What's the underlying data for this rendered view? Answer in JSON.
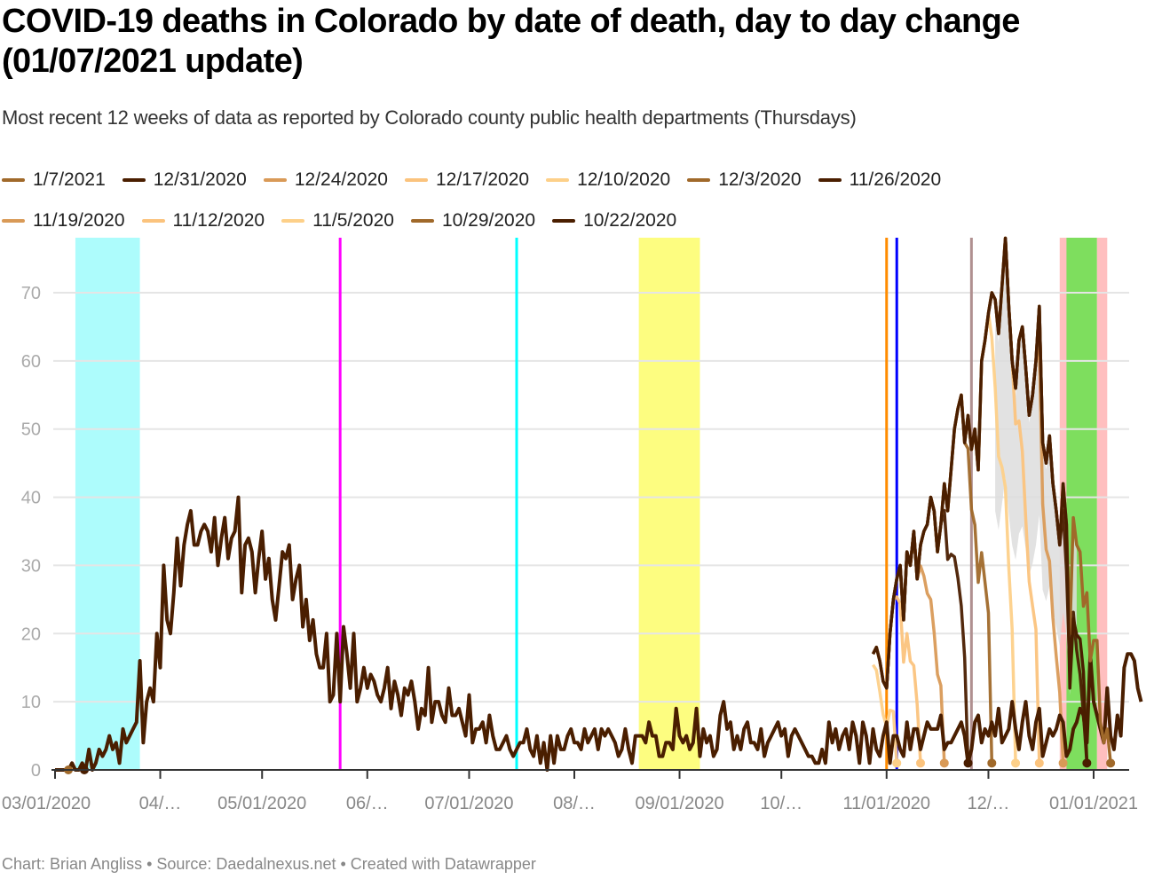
{
  "title": "COVID-19 deaths in Colorado by date of death, day to day change (01/07/2021 update)",
  "subtitle": "Most recent 12 weeks of data as reported by Colorado county public health departments (Thursdays)",
  "footer": "Chart: Brian Angliss • Source: Daedalnexus.net • Created with Datawrapper",
  "colors": {
    "grid": "#e5e5e5",
    "axis": "#333333",
    "tick_label": "#888888",
    "y_label": "#aaaaaa",
    "main_line": "#4a1e00",
    "range_fill": "#dddddd"
  },
  "chart_data": {
    "type": "line",
    "title": "COVID-19 deaths in Colorado by date of death, day to day change (01/07/2021 update)",
    "xlabel": "",
    "ylabel": "",
    "xlim": [
      "2020-03-01",
      "2021-01-07"
    ],
    "ylim": [
      0,
      78
    ],
    "grid": true,
    "legend_position": "top",
    "y_ticks": [
      "0",
      "10",
      "20",
      "30",
      "40",
      "50",
      "60",
      "70"
    ],
    "x_ticks": [
      {
        "date": "2020-03-01",
        "label": "03/01/2020"
      },
      {
        "date": "2020-04-01",
        "label": "04/…"
      },
      {
        "date": "2020-05-01",
        "label": "05/01/2020"
      },
      {
        "date": "2020-06-01",
        "label": "06/…"
      },
      {
        "date": "2020-07-01",
        "label": "07/01/2020"
      },
      {
        "date": "2020-08-01",
        "label": "08/…"
      },
      {
        "date": "2020-09-01",
        "label": "09/01/2020"
      },
      {
        "date": "2020-10-01",
        "label": "10/…"
      },
      {
        "date": "2020-11-01",
        "label": "11/01/2020"
      },
      {
        "date": "2020-12-01",
        "label": "12/…"
      },
      {
        "date": "2021-01-01",
        "label": "01/01/2021"
      }
    ],
    "annotations": {
      "bands": [
        {
          "start": "2020-03-07",
          "end": "2020-03-26",
          "color": "#adfcfc"
        },
        {
          "start": "2020-08-20",
          "end": "2020-09-07",
          "color": "#fdfd80"
        },
        {
          "start": "2020-12-22",
          "end": "2020-12-27",
          "color": "#ffbfbf"
        },
        {
          "start": "2020-12-24",
          "end": "2021-01-02",
          "color": "#7ede5e"
        },
        {
          "start": "2021-01-02",
          "end": "2021-01-05",
          "color": "#ffbfbf"
        }
      ],
      "lines": [
        {
          "date": "2020-05-24",
          "color": "#ff00ff"
        },
        {
          "date": "2020-07-15",
          "color": "#00ffff"
        },
        {
          "date": "2020-11-01",
          "color": "#ff8c00"
        },
        {
          "date": "2020-11-04",
          "color": "#0000ff"
        },
        {
          "date": "2020-11-26",
          "color": "#b09090"
        }
      ]
    },
    "series": [
      {
        "name": "1/7/2021",
        "color": "#a0692a",
        "end": "2021-01-06",
        "values_late": [
          17,
          18,
          16,
          13,
          12,
          20,
          25,
          28,
          30,
          22,
          32,
          30,
          35,
          28,
          33,
          35,
          36,
          40,
          38,
          32,
          36,
          42,
          38,
          44,
          50,
          53,
          55,
          48,
          52,
          47,
          50,
          44,
          60,
          63,
          67,
          70,
          69,
          64,
          71,
          78,
          68,
          60,
          56,
          63,
          65,
          59,
          52,
          55,
          60,
          68,
          48,
          45,
          49,
          42,
          38,
          33,
          42,
          36,
          20,
          37,
          33,
          32,
          24,
          26,
          16,
          19,
          19,
          7,
          4,
          6,
          1
        ]
      },
      {
        "name": "12/31/2020",
        "color": "#4a1e00",
        "end": "2020-12-30"
      },
      {
        "name": "12/24/2020",
        "color": "#d99a57",
        "end": "2020-12-23"
      },
      {
        "name": "12/17/2020",
        "color": "#fbc37d",
        "end": "2020-12-16"
      },
      {
        "name": "12/10/2020",
        "color": "#fdd089",
        "end": "2020-12-09"
      },
      {
        "name": "12/3/2020",
        "color": "#a0692a",
        "end": "2020-12-02"
      },
      {
        "name": "11/26/2020",
        "color": "#4a1e00",
        "end": "2020-11-25"
      },
      {
        "name": "11/19/2020",
        "color": "#d99a57",
        "end": "2020-11-18"
      },
      {
        "name": "11/12/2020",
        "color": "#fbc37d",
        "end": "2020-11-11"
      },
      {
        "name": "11/5/2020",
        "color": "#fdd089",
        "end": "2020-11-04"
      },
      {
        "name": "10/29/2020",
        "color": "#a0692a",
        "end": "2020-10-28"
      },
      {
        "name": "10/22/2020",
        "color": "#4a1e00",
        "end": "2020-10-21"
      }
    ],
    "main_values": [
      0,
      0,
      0,
      0,
      0,
      1,
      0,
      0,
      1,
      0,
      3,
      0,
      1,
      3,
      2,
      3,
      5,
      3,
      4,
      1,
      6,
      4,
      5,
      6,
      7,
      16,
      4,
      10,
      12,
      10,
      20,
      15,
      30,
      22,
      20,
      26,
      34,
      27,
      33,
      36,
      38,
      33,
      33,
      35,
      36,
      35,
      32,
      37,
      30,
      34,
      37,
      31,
      34,
      35,
      40,
      26,
      33,
      34,
      32,
      26,
      31,
      35,
      28,
      31,
      25,
      22,
      27,
      32,
      31,
      33,
      25,
      28,
      30,
      21,
      25,
      19,
      22,
      17,
      15,
      15,
      20,
      10,
      11,
      20,
      10,
      21,
      17,
      12,
      20,
      10,
      12,
      15,
      12,
      14,
      13,
      11,
      10,
      12,
      15,
      9,
      13,
      11,
      8,
      12,
      11,
      13,
      10,
      6,
      9,
      8,
      15,
      7,
      10,
      10,
      8,
      7,
      12,
      8,
      8,
      9,
      7,
      5,
      11,
      4,
      6,
      6,
      7,
      4,
      8,
      5,
      3,
      3,
      4,
      5,
      3,
      2,
      3,
      4,
      4,
      6,
      3,
      2,
      5,
      1,
      4,
      0,
      5,
      1,
      5,
      3,
      3,
      5,
      6,
      4,
      4,
      3,
      6,
      4,
      5,
      6,
      3,
      6,
      5,
      6,
      5,
      4,
      2,
      3,
      6,
      3,
      1,
      5,
      5,
      5,
      4,
      7,
      5,
      5,
      2,
      2,
      4,
      4,
      3,
      9,
      5,
      4,
      5,
      3,
      4,
      9,
      2,
      6,
      4,
      5,
      2,
      3,
      8,
      10,
      6,
      7,
      3,
      5,
      3,
      6,
      7,
      4,
      4,
      3,
      6,
      2,
      4,
      5,
      6,
      7,
      5,
      6,
      2,
      5,
      6,
      5,
      4,
      3,
      2,
      2,
      1,
      1,
      3,
      1,
      7,
      4,
      6,
      3,
      5,
      6,
      3,
      7,
      5,
      1,
      7,
      5,
      1,
      6,
      3,
      2,
      5,
      7,
      1,
      5,
      5,
      3,
      2,
      7,
      3,
      6,
      6,
      3,
      5,
      7,
      6,
      6,
      6,
      8,
      3,
      4,
      4,
      5,
      6,
      7,
      5,
      1,
      3,
      7,
      8,
      4,
      6,
      5,
      7,
      5,
      9,
      4,
      5,
      6,
      10,
      6,
      3,
      7,
      10,
      5,
      3,
      7,
      9,
      2,
      4,
      6,
      5,
      6,
      8,
      7,
      2,
      3,
      6,
      7,
      9,
      8,
      4,
      17,
      10,
      8,
      6,
      4,
      12,
      5,
      3,
      8,
      5,
      15,
      17,
      17,
      16,
      12,
      10
    ]
  }
}
